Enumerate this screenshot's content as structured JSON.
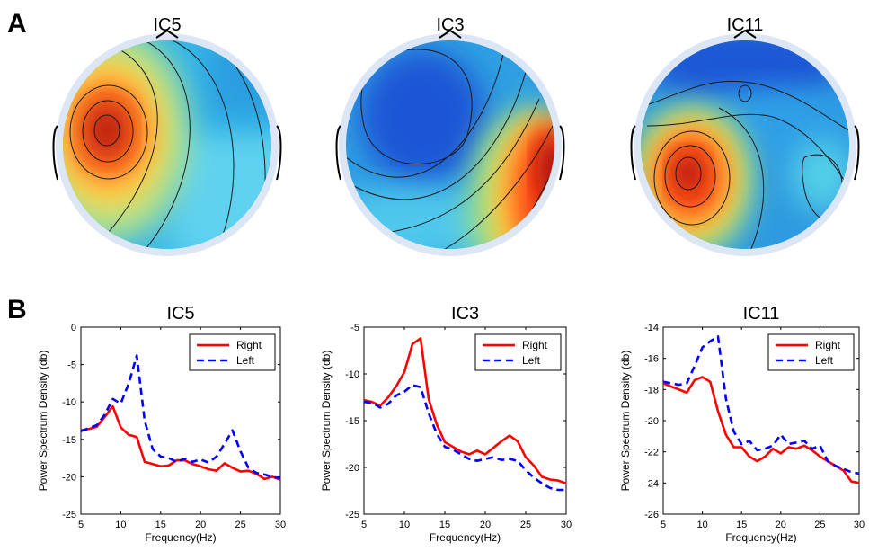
{
  "panels": {
    "a_label": "A",
    "b_label": "B"
  },
  "topomaps": [
    {
      "title": "IC5"
    },
    {
      "title": "IC3"
    },
    {
      "title": "IC11"
    }
  ],
  "colors": {
    "right": "#ff0000",
    "left": "#0000ff",
    "head_ring": "#dde6f4"
  },
  "chart_data": [
    {
      "type": "line",
      "title": "IC5",
      "xlabel": "Frequency(Hz)",
      "ylabel": "Power Spectrum Density (db)",
      "xlim": [
        5,
        30
      ],
      "ylim": [
        -25,
        0
      ],
      "xticks": [
        5,
        10,
        15,
        20,
        25,
        30
      ],
      "yticks": [
        0,
        -5,
        -10,
        -15,
        -20,
        -25
      ],
      "legend_position": "top-right",
      "x": [
        5,
        6,
        7,
        8,
        9,
        10,
        11,
        12,
        13,
        14,
        15,
        16,
        17,
        18,
        19,
        20,
        21,
        22,
        23,
        24,
        25,
        26,
        27,
        28,
        29,
        30
      ],
      "series": [
        {
          "name": "Right",
          "style": "solid",
          "values": [
            -13.8,
            -13.6,
            -13.3,
            -12,
            -10.6,
            -13.4,
            -14.4,
            -14.7,
            -18,
            -18.3,
            -18.6,
            -18.5,
            -17.8,
            -17.8,
            -18.3,
            -18.6,
            -19,
            -19.2,
            -18.2,
            -18.8,
            -19.3,
            -19.2,
            -19.6,
            -20.3,
            -20,
            -20.4
          ]
        },
        {
          "name": "Left",
          "style": "dashed",
          "values": [
            -13.9,
            -13.5,
            -13.1,
            -11.7,
            -9.6,
            -10.2,
            -7.5,
            -3.8,
            -12.5,
            -16.3,
            -17.3,
            -17.5,
            -18,
            -17.6,
            -18,
            -17.7,
            -18.1,
            -17.3,
            -15.6,
            -13.8,
            -16.6,
            -18.8,
            -19.5,
            -19.7,
            -20,
            -20.2
          ]
        }
      ]
    },
    {
      "type": "line",
      "title": "IC3",
      "xlabel": "Frequency(Hz)",
      "ylabel": "Power Spectrum Density (db)",
      "xlim": [
        5,
        30
      ],
      "ylim": [
        -25,
        -5
      ],
      "xticks": [
        5,
        10,
        15,
        20,
        25,
        30
      ],
      "yticks": [
        -5,
        -10,
        -15,
        -20,
        -25
      ],
      "legend_position": "top-right",
      "x": [
        5,
        6,
        7,
        8,
        9,
        10,
        11,
        12,
        13,
        14,
        15,
        16,
        17,
        18,
        19,
        20,
        21,
        22,
        23,
        24,
        25,
        26,
        27,
        28,
        29,
        30
      ],
      "series": [
        {
          "name": "Right",
          "style": "solid",
          "values": [
            -12.8,
            -13,
            -13.4,
            -12.5,
            -11.3,
            -9.8,
            -6.8,
            -6.2,
            -12.7,
            -15.4,
            -17.3,
            -17.8,
            -18.3,
            -18.6,
            -18.2,
            -18.6,
            -17.9,
            -17.2,
            -16.6,
            -17.2,
            -18.9,
            -19.8,
            -21,
            -21.3,
            -21.4,
            -21.7
          ]
        },
        {
          "name": "Left",
          "style": "dashed",
          "values": [
            -13,
            -13.1,
            -13.6,
            -13.2,
            -12.3,
            -11.9,
            -11.2,
            -11.4,
            -14.2,
            -16.4,
            -17.8,
            -18.1,
            -18.6,
            -19.1,
            -19.3,
            -19.1,
            -18.9,
            -19.2,
            -19.1,
            -19.3,
            -20.3,
            -21.1,
            -21.7,
            -22.2,
            -22.4,
            -22.4
          ]
        }
      ]
    },
    {
      "type": "line",
      "title": "IC11",
      "xlabel": "Frequency(Hz)",
      "ylabel": "Power Spectrum Density (db)",
      "xlim": [
        5,
        30
      ],
      "ylim": [
        -26,
        -14
      ],
      "xticks": [
        5,
        10,
        15,
        20,
        25,
        30
      ],
      "yticks": [
        -14,
        -16,
        -18,
        -20,
        -22,
        -24,
        -26
      ],
      "legend_position": "top-right",
      "x": [
        5,
        6,
        7,
        8,
        9,
        10,
        11,
        12,
        13,
        14,
        15,
        16,
        17,
        18,
        19,
        20,
        21,
        22,
        23,
        24,
        25,
        26,
        27,
        28,
        29,
        30
      ],
      "series": [
        {
          "name": "Right",
          "style": "solid",
          "values": [
            -17.6,
            -17.8,
            -18,
            -18.2,
            -17.4,
            -17.2,
            -17.5,
            -19.4,
            -20.9,
            -21.7,
            -21.7,
            -22.3,
            -22.6,
            -22.3,
            -21.8,
            -22.1,
            -21.7,
            -21.8,
            -21.6,
            -21.9,
            -22.3,
            -22.6,
            -22.9,
            -23.2,
            -23.9,
            -24
          ]
        },
        {
          "name": "Left",
          "style": "dashed",
          "values": [
            -17.5,
            -17.6,
            -17.7,
            -17.6,
            -16.5,
            -15.3,
            -14.9,
            -14.6,
            -18.6,
            -20.7,
            -21.5,
            -21.3,
            -21.9,
            -21.8,
            -21.6,
            -20.9,
            -21.5,
            -21.4,
            -21.3,
            -21.8,
            -21.6,
            -22.6,
            -22.9,
            -23.1,
            -23.3,
            -23.4
          ]
        }
      ]
    }
  ]
}
